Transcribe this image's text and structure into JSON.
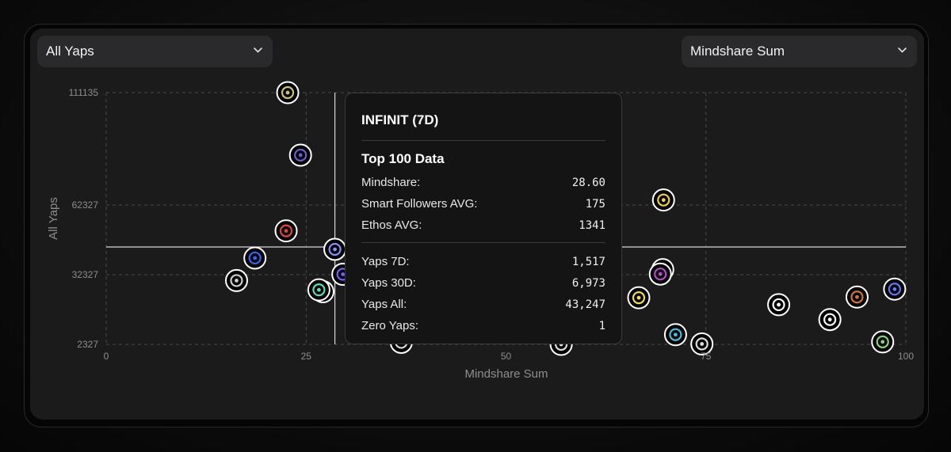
{
  "controls": {
    "y_select_label": "All Yaps",
    "x_select_label": "Mindshare Sum"
  },
  "chart_data": {
    "type": "scatter",
    "xlabel": "Mindshare Sum",
    "ylabel": "All Yaps",
    "xlim": [
      0,
      100
    ],
    "ylim": [
      2327,
      111135
    ],
    "x_ticks": [
      0,
      25,
      50,
      75,
      100
    ],
    "y_ticks": [
      2327,
      32327,
      62327,
      111135
    ],
    "grid": true,
    "crosshair": {
      "x": 28.6,
      "y": 43247
    },
    "points": [
      {
        "x": 22.7,
        "y": 111135,
        "icon": "olive-bars-logo",
        "color": "#c9c46a"
      },
      {
        "x": 24.3,
        "y": 84000,
        "icon": "purple-diamond-logo",
        "color": "#6b5fd8"
      },
      {
        "x": 22.5,
        "y": 51200,
        "icon": "red-c-logo",
        "color": "#e8463a"
      },
      {
        "x": 18.6,
        "y": 39500,
        "icon": "blue-c-logo",
        "color": "#2a6cff"
      },
      {
        "x": 16.3,
        "y": 29800,
        "icon": "grid-circle-logo",
        "color": "#cfcfcf"
      },
      {
        "x": 28.6,
        "y": 43247,
        "icon": "infinit-logo",
        "color": "#8d8dff"
      },
      {
        "x": 29.6,
        "y": 32500,
        "icon": "purple-p-logo",
        "color": "#7a5cff"
      },
      {
        "x": 27.1,
        "y": 25000,
        "icon": "bag-logo",
        "color": "#ffffff"
      },
      {
        "x": 26.6,
        "y": 25800,
        "icon": "teal-rys-logo",
        "color": "#50e3c2"
      },
      {
        "x": 36.9,
        "y": 3200,
        "icon": "dark-a-logo",
        "color": "#dcdcdc"
      },
      {
        "x": 56.9,
        "y": 2327,
        "icon": "dark-ring-logo",
        "color": "#dcdcdc"
      },
      {
        "x": 69.7,
        "y": 64500,
        "icon": "yellow-k-logo",
        "color": "#f6d33a"
      },
      {
        "x": 69.6,
        "y": 34500,
        "icon": "white-ring-logo",
        "color": "#ffffff"
      },
      {
        "x": 69.3,
        "y": 32600,
        "icon": "magenta-y-logo",
        "color": "#c04ad6"
      },
      {
        "x": 66.6,
        "y": 22400,
        "icon": "yellow-v-logo",
        "color": "#f2df3a"
      },
      {
        "x": 71.2,
        "y": 6500,
        "icon": "cyan-wave-logo",
        "color": "#3ec1e0"
      },
      {
        "x": 74.5,
        "y": 2500,
        "icon": "dark-dots-logo",
        "color": "#dcdcdc"
      },
      {
        "x": 84.1,
        "y": 19400,
        "icon": "white-p-logo",
        "color": "#ffffff"
      },
      {
        "x": 90.5,
        "y": 13000,
        "icon": "white-m-logo",
        "color": "#ffffff"
      },
      {
        "x": 93.9,
        "y": 22700,
        "icon": "orange-ring-logo",
        "color": "#d8752b"
      },
      {
        "x": 98.6,
        "y": 26100,
        "icon": "blue-h-logo",
        "color": "#5a7cff"
      },
      {
        "x": 97.1,
        "y": 3400,
        "icon": "green-x-logo",
        "color": "#7ddc6a"
      }
    ]
  },
  "tooltip": {
    "title": "INFINIT (7D)",
    "section_title": "Top 100 Data",
    "rows_top": [
      {
        "label": "Mindshare:",
        "value": "28.60"
      },
      {
        "label": "Smart Followers AVG:",
        "value": "175"
      },
      {
        "label": "Ethos AVG:",
        "value": "1341"
      }
    ],
    "rows_bottom": [
      {
        "label": "Yaps 7D:",
        "value": "1,517"
      },
      {
        "label": "Yaps 30D:",
        "value": "6,973"
      },
      {
        "label": "Yaps All:",
        "value": "43,247"
      },
      {
        "label": "Zero Yaps:",
        "value": "1"
      }
    ]
  },
  "theme": {
    "grid_color": "#4a4a4a",
    "axis_text_color": "#8e8e8e",
    "crosshair_color": "#d8d8d8"
  }
}
